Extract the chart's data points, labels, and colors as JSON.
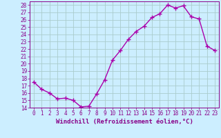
{
  "x": [
    0,
    1,
    2,
    3,
    4,
    5,
    6,
    7,
    8,
    9,
    10,
    11,
    12,
    13,
    14,
    15,
    16,
    17,
    18,
    19,
    20,
    21,
    22,
    23
  ],
  "y": [
    17.5,
    16.5,
    16.0,
    15.2,
    15.3,
    15.0,
    14.1,
    14.2,
    15.9,
    17.8,
    20.5,
    21.8,
    23.3,
    24.4,
    25.1,
    26.3,
    26.8,
    28.0,
    27.6,
    27.9,
    26.4,
    26.1,
    22.4,
    21.8
  ],
  "line_color": "#aa00aa",
  "marker": "+",
  "marker_size": 4,
  "bg_color": "#cceeff",
  "grid_color": "#aacccc",
  "xlabel": "Windchill (Refroidissement éolien,°C)",
  "ylim": [
    14,
    28.5
  ],
  "xlim": [
    -0.5,
    23.5
  ],
  "yticks": [
    14,
    15,
    16,
    17,
    18,
    19,
    20,
    21,
    22,
    23,
    24,
    25,
    26,
    27,
    28
  ],
  "xticks": [
    0,
    1,
    2,
    3,
    4,
    5,
    6,
    7,
    8,
    9,
    10,
    11,
    12,
    13,
    14,
    15,
    16,
    17,
    18,
    19,
    20,
    21,
    22,
    23
  ],
  "tick_color": "#880088",
  "label_color": "#880088",
  "xlabel_fontsize": 6.5,
  "tick_fontsize": 5.5,
  "line_width": 1.0
}
